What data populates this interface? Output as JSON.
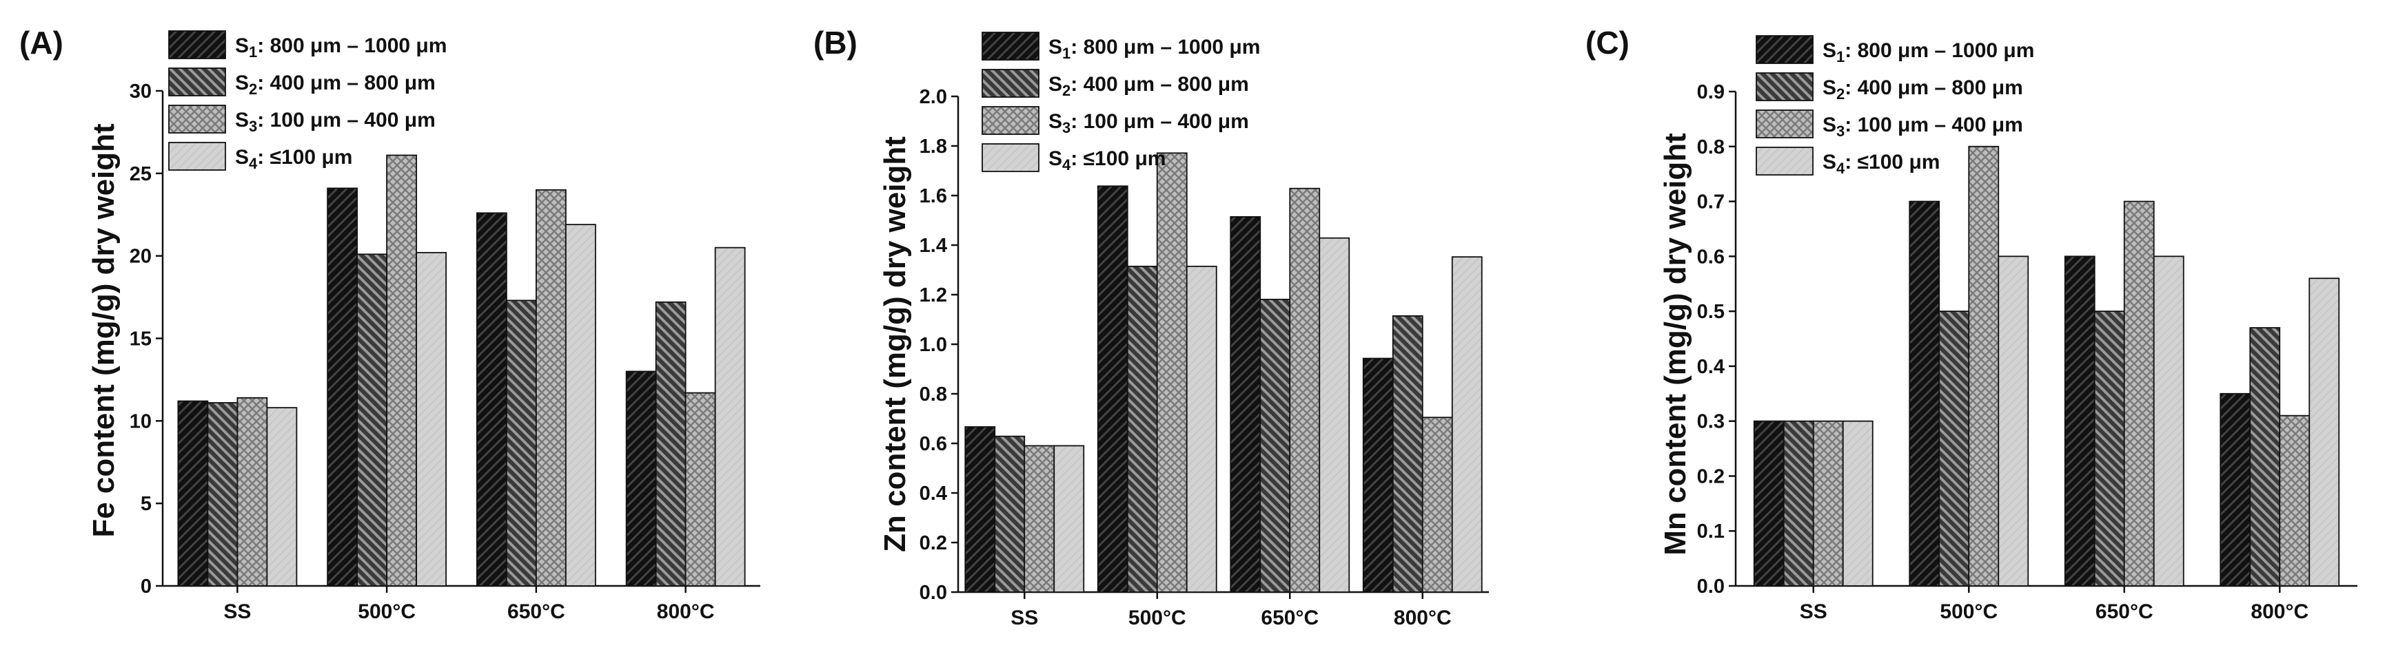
{
  "legend_items": [
    {
      "sym": "S",
      "sub": "1",
      "range": "800 μm – 1000 μm"
    },
    {
      "sym": "S",
      "sub": "2",
      "range": "400 μm – 800 μm"
    },
    {
      "sym": "S",
      "sub": "3",
      "range": "100 μm – 400 μm"
    },
    {
      "sym": "S",
      "sub": "4",
      "range": "≤100 μm"
    }
  ],
  "colors": {
    "series_fill": [
      "#3c3c3c",
      "#747474",
      "#a8a8a8",
      "#cfcfcf"
    ],
    "stroke": "#111111"
  },
  "chart_data": [
    {
      "panel": "(A)",
      "type": "bar",
      "ylabel": "Fe content (mg/g) dry weight",
      "ylim": [
        0,
        30
      ],
      "yticks": [
        "0",
        "5",
        "10",
        "15",
        "20",
        "25",
        "30"
      ],
      "categories": [
        "SS",
        "500°C",
        "650°C",
        "800°C"
      ],
      "legend": [
        "S₁: 800 μm – 1000 μm",
        "S₂: 400 μm – 800 μm",
        "S₃: 100 μm – 400 μm",
        "S₄: ≤100 μm"
      ],
      "series": [
        {
          "name": "S1",
          "values": [
            11.2,
            24.1,
            22.6,
            13.0
          ]
        },
        {
          "name": "S2",
          "values": [
            11.1,
            20.1,
            17.3,
            17.2
          ]
        },
        {
          "name": "S3",
          "values": [
            11.4,
            26.1,
            24.0,
            11.7
          ]
        },
        {
          "name": "S4",
          "values": [
            10.8,
            20.2,
            21.9,
            20.5
          ]
        }
      ]
    },
    {
      "panel": "(B)",
      "type": "bar",
      "ylabel": "Zn content (mg/g) dry weight",
      "ylim": [
        0,
        2.1
      ],
      "yticks": [
        "0.0",
        "0.2",
        "0.4",
        "0.6",
        "0.8",
        "1.0",
        "1.2",
        "1.4",
        "1.6",
        "1.8",
        "2.0"
      ],
      "categories": [
        "SS",
        "500°C",
        "650°C",
        "800°C"
      ],
      "legend": [
        "S₁: 800 μm – 1000 μm",
        "S₂: 400 μm – 800 μm",
        "S₃: 100 μm – 400 μm",
        "S₄: ≤ 100 μm"
      ],
      "series": [
        {
          "name": "S1",
          "values": [
            0.7,
            1.72,
            1.59,
            0.99
          ]
        },
        {
          "name": "S2",
          "values": [
            0.66,
            1.38,
            1.24,
            1.17
          ]
        },
        {
          "name": "S3",
          "values": [
            0.62,
            1.86,
            1.71,
            0.74
          ]
        },
        {
          "name": "S4",
          "values": [
            0.62,
            1.38,
            1.5,
            1.42
          ]
        }
      ]
    },
    {
      "panel": "(C)",
      "type": "bar",
      "ylabel": "Mn content (mg/g) dry weight",
      "ylim": [
        0,
        0.9
      ],
      "yticks": [
        "0.0",
        "0.1",
        "0.2",
        "0.3",
        "0.4",
        "0.5",
        "0.6",
        "0.7",
        "0.8",
        "0.9"
      ],
      "categories": [
        "SS",
        "500°C",
        "650°C",
        "800°C"
      ],
      "legend": [
        "S₁: 800 μm – 1000 μm",
        "S₂: 400 μm – 800 μm",
        "S₃: 100 μm – 400 μm",
        "S₄: ≤100 μm"
      ],
      "series": [
        {
          "name": "S1",
          "values": [
            0.3,
            0.7,
            0.6,
            0.35
          ]
        },
        {
          "name": "S2",
          "values": [
            0.3,
            0.5,
            0.5,
            0.47
          ]
        },
        {
          "name": "S3",
          "values": [
            0.3,
            0.8,
            0.7,
            0.31
          ]
        },
        {
          "name": "S4",
          "values": [
            0.3,
            0.6,
            0.6,
            0.56
          ]
        }
      ]
    }
  ]
}
